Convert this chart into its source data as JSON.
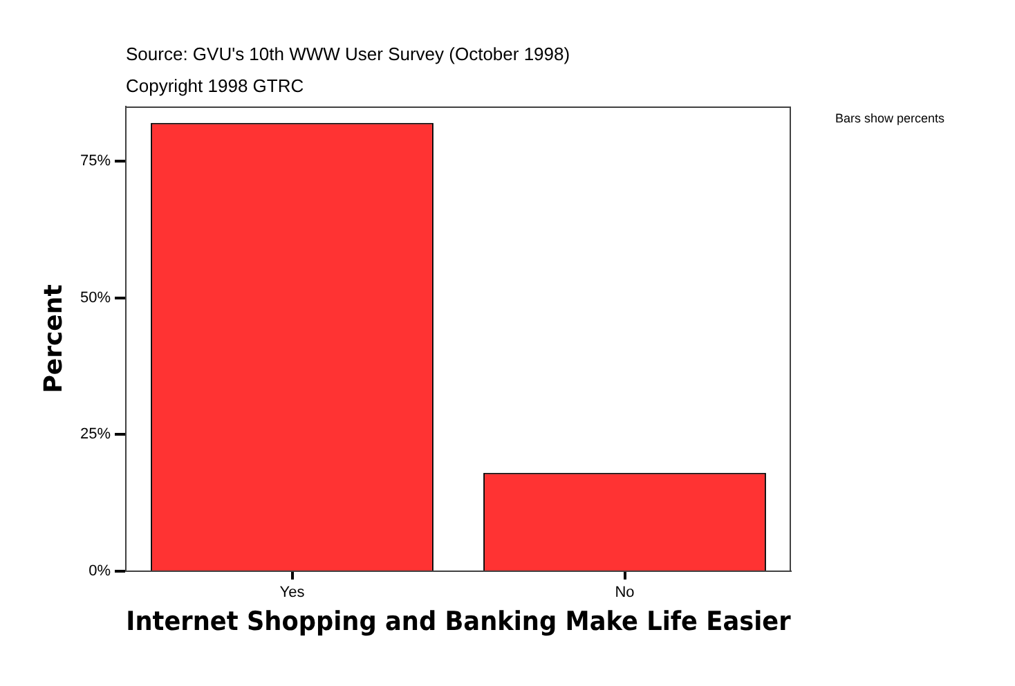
{
  "chart_data": {
    "type": "bar",
    "xlabel": "Internet Shopping and Banking Make Life Easier",
    "ylabel": "Percent",
    "categories": [
      "Yes",
      "No"
    ],
    "values": [
      82,
      18
    ],
    "color": "#ff3333",
    "ylim": [
      0,
      85
    ],
    "yticks": [
      {
        "value": 0,
        "label": "0%"
      },
      {
        "value": 25,
        "label": "25%"
      },
      {
        "value": 50,
        "label": "50%"
      },
      {
        "value": 75,
        "label": "75%"
      }
    ],
    "annotations": [
      "Source: GVU's 10th WWW User Survey (October 1998)",
      "Copyright 1998 GTRC",
      "Bars show percents"
    ]
  }
}
